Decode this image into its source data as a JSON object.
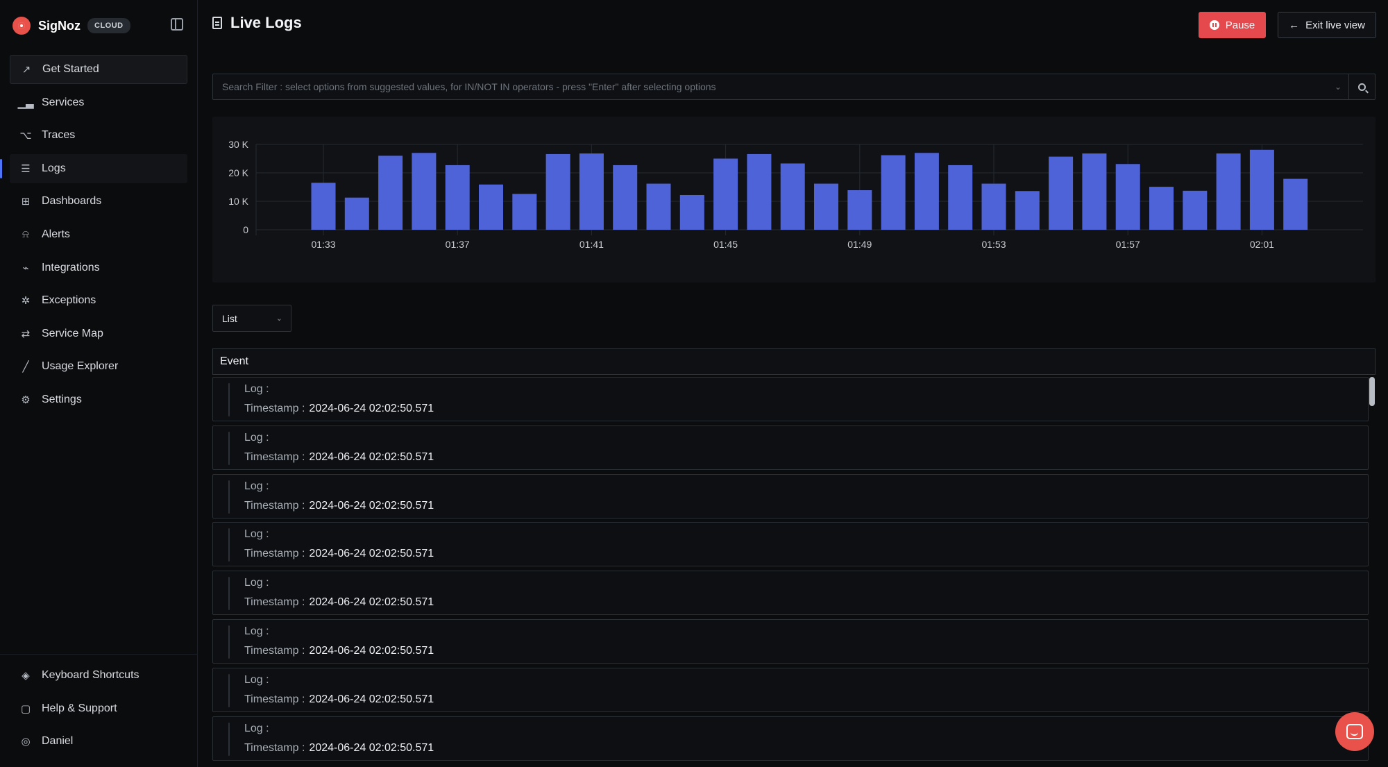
{
  "brand": {
    "name": "SigNoz",
    "badge": "CLOUD"
  },
  "sidebar": {
    "items": [
      {
        "label": "Get Started",
        "icon": "rocket-icon"
      },
      {
        "label": "Services",
        "icon": "bar-chart-icon"
      },
      {
        "label": "Traces",
        "icon": "route-icon"
      },
      {
        "label": "Logs",
        "icon": "scroll-icon"
      },
      {
        "label": "Dashboards",
        "icon": "grid-icon"
      },
      {
        "label": "Alerts",
        "icon": "bell-icon"
      },
      {
        "label": "Integrations",
        "icon": "plug-icon"
      },
      {
        "label": "Exceptions",
        "icon": "bug-icon"
      },
      {
        "label": "Service Map",
        "icon": "map-icon"
      },
      {
        "label": "Usage Explorer",
        "icon": "line-chart-icon"
      },
      {
        "label": "Settings",
        "icon": "gear-icon"
      }
    ],
    "bottom": [
      {
        "label": "Keyboard Shortcuts",
        "icon": "layers-icon"
      },
      {
        "label": "Help & Support",
        "icon": "message-icon"
      },
      {
        "label": "Daniel",
        "icon": "user-icon"
      }
    ]
  },
  "header": {
    "title": "Live Logs",
    "pause_label": "Pause",
    "exit_label": "Exit live view"
  },
  "search": {
    "placeholder": "Search Filter : select options from suggested values, for IN/NOT IN operators - press \"Enter\" after selecting options"
  },
  "view": {
    "selected": "List"
  },
  "table": {
    "header": "Event"
  },
  "logs": [
    {
      "log_label": "Log :",
      "log_value": "",
      "ts_label": "Timestamp :",
      "ts_value": "2024-06-24 02:02:50.571"
    },
    {
      "log_label": "Log :",
      "log_value": "",
      "ts_label": "Timestamp :",
      "ts_value": "2024-06-24 02:02:50.571"
    },
    {
      "log_label": "Log :",
      "log_value": "",
      "ts_label": "Timestamp :",
      "ts_value": "2024-06-24 02:02:50.571"
    },
    {
      "log_label": "Log :",
      "log_value": "",
      "ts_label": "Timestamp :",
      "ts_value": "2024-06-24 02:02:50.571"
    },
    {
      "log_label": "Log :",
      "log_value": "",
      "ts_label": "Timestamp :",
      "ts_value": "2024-06-24 02:02:50.571"
    },
    {
      "log_label": "Log :",
      "log_value": "",
      "ts_label": "Timestamp :",
      "ts_value": "2024-06-24 02:02:50.571"
    },
    {
      "log_label": "Log :",
      "log_value": "",
      "ts_label": "Timestamp :",
      "ts_value": "2024-06-24 02:02:50.571"
    },
    {
      "log_label": "Log :",
      "log_value": "",
      "ts_label": "Timestamp :",
      "ts_value": "2024-06-24 02:02:50.571"
    }
  ],
  "colors": {
    "accent": "#4e74f8",
    "bar": "#4f63d8",
    "danger": "#e5484d"
  },
  "chart_data": {
    "type": "bar",
    "x_tick_labels": [
      "01:33",
      "01:37",
      "01:41",
      "01:45",
      "01:49",
      "01:53",
      "01:57",
      "02:01"
    ],
    "x_tick_positions": [
      0,
      4,
      8,
      12,
      16,
      20,
      24,
      28
    ],
    "y_tick_labels": [
      "30 K",
      "20 K",
      "10 K",
      "0"
    ],
    "y_tick_values": [
      30000,
      20000,
      10000,
      0
    ],
    "ylim": [
      0,
      30000
    ],
    "grid": true,
    "values": [
      16500,
      11300,
      26000,
      27000,
      22700,
      15900,
      12600,
      26600,
      26800,
      22700,
      16200,
      12200,
      25000,
      26600,
      23300,
      16200,
      13900,
      26200,
      27000,
      22700,
      16200,
      13600,
      25700,
      26800,
      23100,
      15100,
      13700,
      26800,
      28100,
      17900
    ]
  }
}
